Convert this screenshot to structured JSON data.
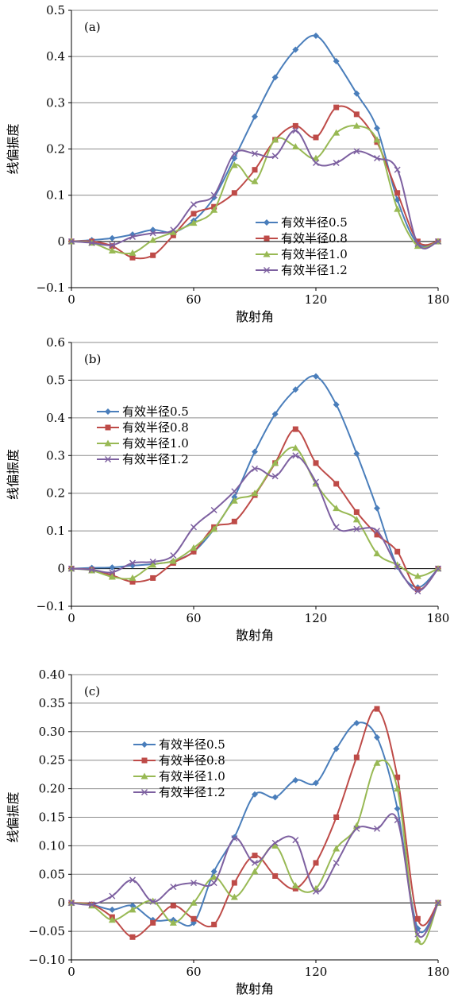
{
  "chart_data": [
    {
      "type": "line",
      "panel_label": "(a)",
      "xlabel": "散射角",
      "ylabel": "线偏振度",
      "xlim": [
        0,
        180
      ],
      "ylim": [
        -0.1,
        0.5
      ],
      "xticks": [
        0,
        60,
        120,
        180
      ],
      "yticks": [
        -0.1,
        0,
        0.1,
        0.2,
        0.3,
        0.4,
        0.5
      ],
      "ytick_labels": [
        "−0.1",
        "0",
        "0.1",
        "0.2",
        "0.3",
        "0.4",
        "0.5"
      ],
      "xtick_labels": [
        "0",
        "60",
        "120",
        "180"
      ],
      "grid": "horizontal",
      "legend_position": "bottom-right",
      "x": [
        0,
        10,
        20,
        30,
        40,
        50,
        60,
        70,
        80,
        90,
        100,
        110,
        120,
        130,
        140,
        150,
        160,
        170,
        180
      ],
      "series": [
        {
          "name": "有效半径0.5",
          "color": "#4a7ebb",
          "marker": "diamond",
          "values": [
            0,
            0.003,
            0.007,
            0.015,
            0.025,
            0.02,
            0.045,
            0.095,
            0.18,
            0.27,
            0.355,
            0.415,
            0.445,
            0.39,
            0.32,
            0.245,
            0.09,
            -0.005,
            0
          ]
        },
        {
          "name": "有效半径0.8",
          "color": "#be4b48",
          "marker": "square",
          "values": [
            0,
            0,
            -0.01,
            -0.035,
            -0.03,
            0.013,
            0.06,
            0.075,
            0.105,
            0.155,
            0.22,
            0.25,
            0.225,
            0.29,
            0.275,
            0.215,
            0.105,
            0,
            0
          ]
        },
        {
          "name": "有效半径1.0",
          "color": "#98b954",
          "marker": "triangle",
          "values": [
            0,
            -0.003,
            -0.02,
            -0.025,
            0.003,
            0.02,
            0.04,
            0.068,
            0.165,
            0.13,
            0.22,
            0.205,
            0.18,
            0.235,
            0.25,
            0.22,
            0.07,
            -0.01,
            0
          ]
        },
        {
          "name": "有效半径1.2",
          "color": "#7d60a0",
          "marker": "x",
          "values": [
            0,
            -0.003,
            -0.008,
            0.01,
            0.018,
            0.025,
            0.08,
            0.1,
            0.19,
            0.19,
            0.185,
            0.24,
            0.17,
            0.17,
            0.195,
            0.18,
            0.155,
            -0.005,
            0
          ]
        }
      ]
    },
    {
      "type": "line",
      "panel_label": "(b)",
      "xlabel": "散射角",
      "ylabel": "线偏振度",
      "xlim": [
        0,
        180
      ],
      "ylim": [
        -0.1,
        0.6
      ],
      "xticks": [
        0,
        60,
        120,
        180
      ],
      "yticks": [
        -0.1,
        0,
        0.1,
        0.2,
        0.3,
        0.4,
        0.5,
        0.6
      ],
      "ytick_labels": [
        "−0.1",
        "0",
        "0.1",
        "0.2",
        "0.3",
        "0.4",
        "0.5",
        "0.6"
      ],
      "xtick_labels": [
        "0",
        "60",
        "120",
        "180"
      ],
      "grid": "horizontal",
      "legend_position": "top-left",
      "x": [
        0,
        10,
        20,
        30,
        40,
        50,
        60,
        70,
        80,
        90,
        100,
        110,
        120,
        130,
        140,
        150,
        160,
        170,
        180
      ],
      "series": [
        {
          "name": "有效半径0.5",
          "color": "#4a7ebb",
          "marker": "diamond",
          "values": [
            0,
            0.002,
            0.003,
            0.008,
            0.012,
            0.02,
            0.045,
            0.105,
            0.19,
            0.31,
            0.41,
            0.475,
            0.51,
            0.435,
            0.305,
            0.16,
            0.005,
            -0.05,
            0
          ]
        },
        {
          "name": "有效半径0.8",
          "color": "#be4b48",
          "marker": "square",
          "values": [
            0,
            -0.003,
            -0.018,
            -0.035,
            -0.025,
            0.015,
            0.045,
            0.11,
            0.125,
            0.195,
            0.28,
            0.37,
            0.28,
            0.225,
            0.15,
            0.09,
            0.045,
            -0.055,
            0
          ]
        },
        {
          "name": "有效半径1.0",
          "color": "#98b954",
          "marker": "triangle",
          "values": [
            0,
            -0.005,
            -0.022,
            -0.025,
            0.01,
            0.02,
            0.055,
            0.105,
            0.18,
            0.2,
            0.28,
            0.32,
            0.225,
            0.16,
            0.13,
            0.04,
            0.01,
            -0.02,
            0
          ]
        },
        {
          "name": "有效半径1.2",
          "color": "#7d60a0",
          "marker": "x",
          "values": [
            0,
            -0.003,
            -0.01,
            0.015,
            0.018,
            0.035,
            0.11,
            0.155,
            0.205,
            0.265,
            0.245,
            0.3,
            0.23,
            0.11,
            0.105,
            0.1,
            0.005,
            -0.06,
            0
          ]
        }
      ]
    },
    {
      "type": "line",
      "panel_label": "(c)",
      "xlabel": "散射角",
      "ylabel": "线偏振度",
      "xlim": [
        0,
        180
      ],
      "ylim": [
        -0.1,
        0.4
      ],
      "xticks": [
        0,
        60,
        120,
        180
      ],
      "yticks": [
        -0.1,
        -0.05,
        0,
        0.05,
        0.1,
        0.15,
        0.2,
        0.25,
        0.3,
        0.35,
        0.4
      ],
      "ytick_labels": [
        "−0.10",
        "−0.05",
        "0",
        "0.05",
        "0.10",
        "0.15",
        "0.20",
        "0.25",
        "0.30",
        "0.35",
        "0.40"
      ],
      "xtick_labels": [
        "0",
        "60",
        "120",
        "180"
      ],
      "grid": "horizontal",
      "legend_position": "top-left",
      "x": [
        0,
        10,
        20,
        30,
        40,
        50,
        60,
        70,
        80,
        90,
        100,
        110,
        120,
        130,
        140,
        150,
        160,
        170,
        180
      ],
      "series": [
        {
          "name": "有效半径0.5",
          "color": "#4a7ebb",
          "marker": "diamond",
          "values": [
            0,
            -0.003,
            -0.012,
            -0.005,
            -0.03,
            -0.03,
            -0.035,
            0.055,
            0.115,
            0.19,
            0.185,
            0.215,
            0.21,
            0.27,
            0.315,
            0.29,
            0.165,
            -0.045,
            0
          ]
        },
        {
          "name": "有效半径0.8",
          "color": "#be4b48",
          "marker": "square",
          "values": [
            0,
            -0.003,
            -0.025,
            -0.06,
            -0.035,
            -0.005,
            -0.028,
            -0.038,
            0.035,
            0.083,
            0.047,
            0.025,
            0.07,
            0.15,
            0.255,
            0.34,
            0.22,
            -0.028,
            0
          ]
        },
        {
          "name": "有效半径1.0",
          "color": "#98b954",
          "marker": "triangle",
          "values": [
            0,
            -0.005,
            -0.03,
            -0.012,
            0.003,
            -0.035,
            0,
            0.045,
            0.01,
            0.055,
            0.1,
            0.03,
            0.025,
            0.095,
            0.135,
            0.245,
            0.2,
            -0.065,
            0
          ]
        },
        {
          "name": "有效半径1.2",
          "color": "#7d60a0",
          "marker": "x",
          "values": [
            0,
            -0.003,
            0.012,
            0.04,
            0.002,
            0.028,
            0.035,
            0.035,
            0.113,
            0.07,
            0.105,
            0.11,
            0.02,
            0.07,
            0.13,
            0.13,
            0.145,
            -0.055,
            0
          ]
        }
      ]
    }
  ]
}
